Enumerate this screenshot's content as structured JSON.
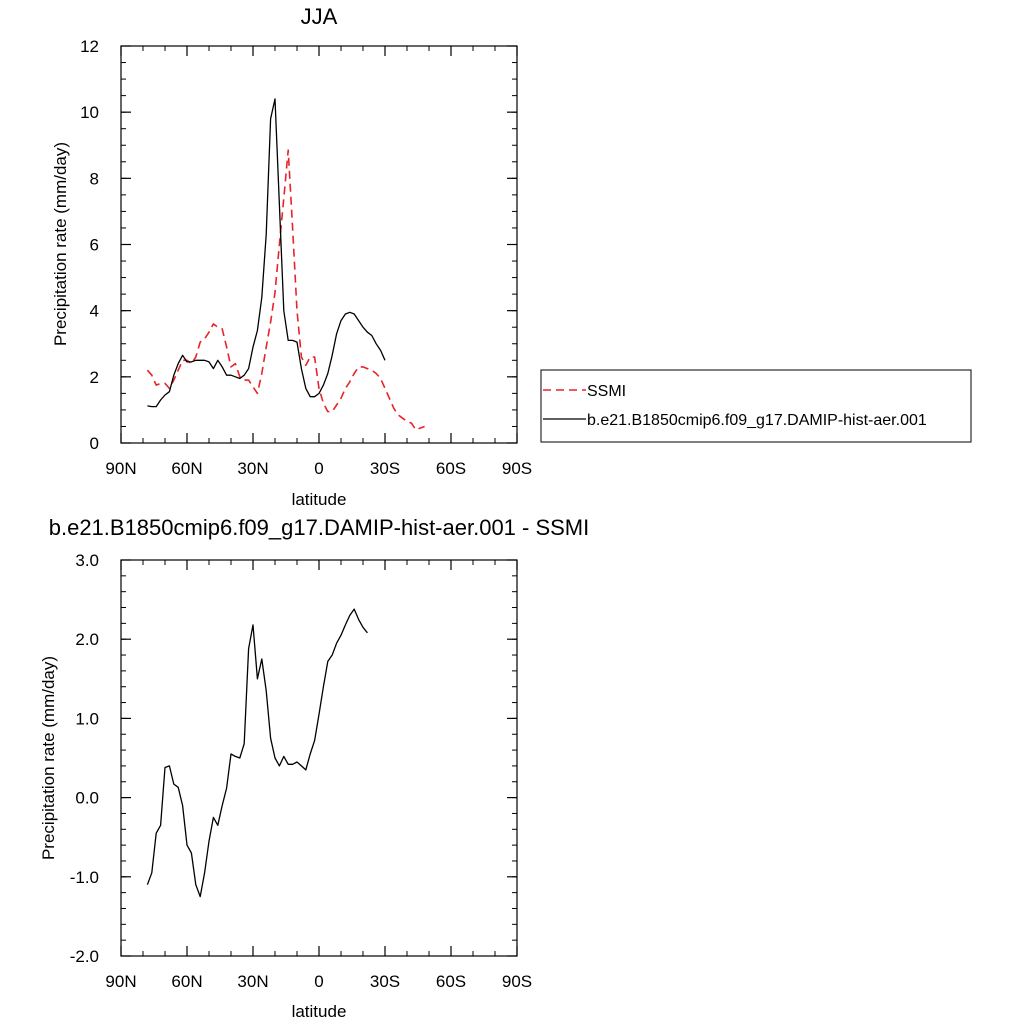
{
  "chart_data": [
    {
      "type": "line",
      "title": "JJA",
      "xlabel": "latitude",
      "ylabel": "Precipitation rate (mm/day)",
      "xlim": [
        90,
        -90
      ],
      "ylim": [
        0,
        12
      ],
      "xticks": [
        {
          "value": 90,
          "label": "90N"
        },
        {
          "value": 60,
          "label": "60N"
        },
        {
          "value": 30,
          "label": "30N"
        },
        {
          "value": 0,
          "label": "0"
        },
        {
          "value": -30,
          "label": "30S"
        },
        {
          "value": -60,
          "label": "60S"
        },
        {
          "value": -90,
          "label": "90S"
        }
      ],
      "yticks": [
        {
          "value": 0,
          "label": "0"
        },
        {
          "value": 2,
          "label": "2"
        },
        {
          "value": 4,
          "label": "4"
        },
        {
          "value": 6,
          "label": "6"
        },
        {
          "value": 8,
          "label": "8"
        },
        {
          "value": 10,
          "label": "10"
        },
        {
          "value": 12,
          "label": "12"
        }
      ],
      "grid": false,
      "legend_position": "right",
      "series": [
        {
          "name": "SSMI",
          "color": "#e8232a",
          "dash": "dashed",
          "points": [
            [
              78,
              2.2
            ],
            [
              76,
              2.05
            ],
            [
              74,
              1.75
            ],
            [
              72,
              1.8
            ],
            [
              70,
              1.8
            ],
            [
              68,
              1.65
            ],
            [
              66,
              1.9
            ],
            [
              64,
              2.2
            ],
            [
              62,
              2.5
            ],
            [
              60,
              2.5
            ],
            [
              58,
              2.4
            ],
            [
              56,
              2.6
            ],
            [
              54,
              3.05
            ],
            [
              52,
              3.15
            ],
            [
              50,
              3.35
            ],
            [
              48,
              3.6
            ],
            [
              46,
              3.5
            ],
            [
              44,
              3.45
            ],
            [
              42,
              2.9
            ],
            [
              40,
              2.3
            ],
            [
              38,
              2.4
            ],
            [
              36,
              2.0
            ],
            [
              34,
              1.9
            ],
            [
              32,
              1.9
            ],
            [
              30,
              1.7
            ],
            [
              28,
              1.5
            ],
            [
              26,
              2.1
            ],
            [
              24,
              2.9
            ],
            [
              22,
              3.65
            ],
            [
              20,
              4.55
            ],
            [
              18,
              6.0
            ],
            [
              16,
              7.4
            ],
            [
              14,
              8.85
            ],
            [
              12,
              6.5
            ],
            [
              10,
              4.0
            ],
            [
              8,
              2.6
            ],
            [
              6,
              2.35
            ],
            [
              4,
              2.6
            ],
            [
              2,
              2.6
            ],
            [
              0,
              1.65
            ],
            [
              -2,
              1.2
            ],
            [
              -4,
              0.95
            ],
            [
              -6,
              0.95
            ],
            [
              -8,
              1.15
            ],
            [
              -10,
              1.35
            ],
            [
              -12,
              1.65
            ],
            [
              -14,
              1.85
            ],
            [
              -16,
              2.1
            ],
            [
              -18,
              2.3
            ],
            [
              -20,
              2.3
            ],
            [
              -22,
              2.25
            ],
            [
              -24,
              2.2
            ],
            [
              -26,
              2.1
            ],
            [
              -28,
              1.95
            ],
            [
              -30,
              1.65
            ],
            [
              -32,
              1.35
            ],
            [
              -34,
              1.05
            ],
            [
              -36,
              0.85
            ],
            [
              -38,
              0.75
            ],
            [
              -40,
              0.65
            ],
            [
              -42,
              0.6
            ],
            [
              -44,
              0.4
            ],
            [
              -46,
              0.45
            ],
            [
              -48,
              0.5
            ]
          ]
        },
        {
          "name": "b.e21.B1850cmip6.f09_g17.DAMIP-hist-aer.001",
          "color": "#000000",
          "dash": "solid",
          "points": [
            [
              78,
              1.12
            ],
            [
              76,
              1.1
            ],
            [
              74,
              1.1
            ],
            [
              72,
              1.3
            ],
            [
              70,
              1.45
            ],
            [
              68,
              1.55
            ],
            [
              66,
              2.05
            ],
            [
              64,
              2.4
            ],
            [
              62,
              2.65
            ],
            [
              60,
              2.45
            ],
            [
              58,
              2.45
            ],
            [
              56,
              2.5
            ],
            [
              54,
              2.5
            ],
            [
              52,
              2.5
            ],
            [
              50,
              2.45
            ],
            [
              48,
              2.25
            ],
            [
              46,
              2.5
            ],
            [
              44,
              2.3
            ],
            [
              42,
              2.05
            ],
            [
              40,
              2.05
            ],
            [
              38,
              2.0
            ],
            [
              36,
              1.95
            ],
            [
              34,
              2.05
            ],
            [
              32,
              2.25
            ],
            [
              30,
              2.9
            ],
            [
              28,
              3.4
            ],
            [
              26,
              4.4
            ],
            [
              24,
              6.3
            ],
            [
              22,
              9.8
            ],
            [
              20,
              10.4
            ],
            [
              18,
              7.2
            ],
            [
              16,
              4.0
            ],
            [
              14,
              3.1
            ],
            [
              12,
              3.1
            ],
            [
              10,
              3.05
            ],
            [
              8,
              2.25
            ],
            [
              6,
              1.65
            ],
            [
              4,
              1.4
            ],
            [
              2,
              1.4
            ],
            [
              0,
              1.5
            ],
            [
              -2,
              1.75
            ],
            [
              -4,
              2.1
            ],
            [
              -6,
              2.65
            ],
            [
              -8,
              3.3
            ],
            [
              -10,
              3.7
            ],
            [
              -12,
              3.9
            ],
            [
              -14,
              3.95
            ],
            [
              -16,
              3.9
            ],
            [
              -18,
              3.7
            ],
            [
              -20,
              3.5
            ],
            [
              -22,
              3.35
            ],
            [
              -24,
              3.25
            ],
            [
              -26,
              3.0
            ],
            [
              -28,
              2.8
            ],
            [
              -30,
              2.5
            ]
          ]
        }
      ]
    },
    {
      "type": "line",
      "title": "b.e21.B1850cmip6.f09_g17.DAMIP-hist-aer.001 - SSMI",
      "xlabel": "latitude",
      "ylabel": "Precipitation rate (mm/day)",
      "xlim": [
        90,
        -90
      ],
      "ylim": [
        -2.0,
        3.0
      ],
      "xticks": [
        {
          "value": 90,
          "label": "90N"
        },
        {
          "value": 60,
          "label": "60N"
        },
        {
          "value": 30,
          "label": "30N"
        },
        {
          "value": 0,
          "label": "0"
        },
        {
          "value": -30,
          "label": "30S"
        },
        {
          "value": -60,
          "label": "60S"
        },
        {
          "value": -90,
          "label": "90S"
        }
      ],
      "yticks": [
        {
          "value": -2.0,
          "label": "-2.0"
        },
        {
          "value": -1.0,
          "label": "-1.0"
        },
        {
          "value": 0.0,
          "label": "0.0"
        },
        {
          "value": 1.0,
          "label": "1.0"
        },
        {
          "value": 2.0,
          "label": "2.0"
        },
        {
          "value": 3.0,
          "label": "3.0"
        }
      ],
      "grid": false,
      "series": [
        {
          "color": "#000000",
          "dash": "solid",
          "points": [
            [
              78,
              -1.1
            ],
            [
              76,
              -0.95
            ],
            [
              74,
              -0.45
            ],
            [
              72,
              -0.35
            ],
            [
              70,
              0.38
            ],
            [
              68,
              0.4
            ],
            [
              66,
              0.17
            ],
            [
              64,
              0.13
            ],
            [
              62,
              -0.1
            ],
            [
              60,
              -0.6
            ],
            [
              58,
              -0.7
            ],
            [
              56,
              -1.1
            ],
            [
              54,
              -1.25
            ],
            [
              52,
              -0.95
            ],
            [
              50,
              -0.55
            ],
            [
              48,
              -0.25
            ],
            [
              46,
              -0.35
            ],
            [
              44,
              -0.1
            ],
            [
              42,
              0.12
            ],
            [
              40,
              0.55
            ],
            [
              38,
              0.52
            ],
            [
              36,
              0.5
            ],
            [
              34,
              0.68
            ],
            [
              32,
              1.88
            ],
            [
              30,
              2.18
            ],
            [
              28,
              1.5
            ],
            [
              26,
              1.75
            ],
            [
              24,
              1.35
            ],
            [
              22,
              0.75
            ],
            [
              20,
              0.5
            ],
            [
              18,
              0.4
            ],
            [
              16,
              0.52
            ],
            [
              14,
              0.42
            ],
            [
              12,
              0.42
            ],
            [
              10,
              0.45
            ],
            [
              8,
              0.4
            ],
            [
              6,
              0.35
            ],
            [
              4,
              0.55
            ],
            [
              2,
              0.72
            ],
            [
              0,
              1.05
            ],
            [
              -2,
              1.4
            ],
            [
              -4,
              1.72
            ],
            [
              -6,
              1.8
            ],
            [
              -8,
              1.95
            ],
            [
              -10,
              2.05
            ],
            [
              -12,
              2.18
            ],
            [
              -14,
              2.3
            ],
            [
              -16,
              2.38
            ],
            [
              -18,
              2.25
            ],
            [
              -20,
              2.15
            ],
            [
              -22,
              2.08
            ]
          ]
        }
      ]
    }
  ]
}
